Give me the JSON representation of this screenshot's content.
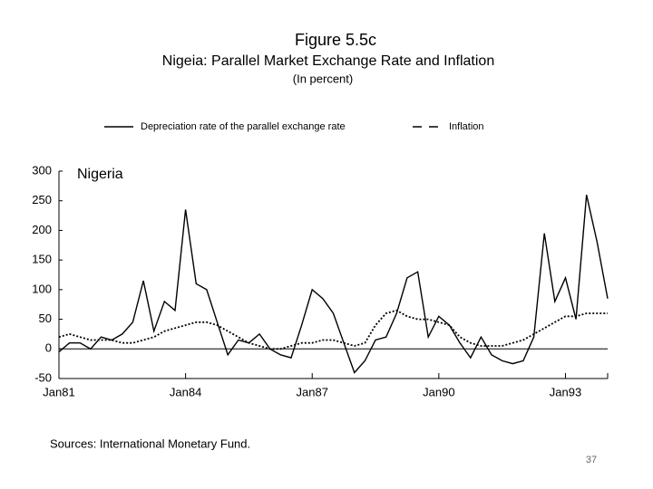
{
  "chart_data": {
    "type": "line",
    "title": "Figure 5.5c",
    "subtitle": "Nigeia: Parallel Market Exchange Rate and Inflation",
    "unit_note": "(In percent)",
    "annotation": "Nigeria",
    "source": "Sources: International Monetary Fund.",
    "page_number": "37",
    "categories": [
      "Jan81",
      null,
      null,
      null,
      null,
      null,
      null,
      null,
      null,
      null,
      null,
      null,
      "Jan84",
      null,
      null,
      null,
      null,
      null,
      null,
      null,
      null,
      null,
      null,
      null,
      "Jan87",
      null,
      null,
      null,
      null,
      null,
      null,
      null,
      null,
      null,
      null,
      null,
      "Jan90",
      null,
      null,
      null,
      null,
      null,
      null,
      null,
      null,
      null,
      null,
      null,
      "Jan93",
      null,
      null,
      null,
      null
    ],
    "series": [
      {
        "name": "Depreciation rate of the parallel exchange rate",
        "color": "#000000",
        "style": "solid",
        "values": [
          -5,
          10,
          10,
          0,
          20,
          15,
          25,
          45,
          115,
          30,
          80,
          65,
          235,
          110,
          100,
          45,
          -10,
          15,
          10,
          25,
          0,
          -10,
          -15,
          40,
          100,
          85,
          60,
          10,
          -40,
          -20,
          15,
          20,
          60,
          120,
          130,
          20,
          55,
          40,
          10,
          -15,
          20,
          -10,
          -20,
          -25,
          -20,
          20,
          195,
          80,
          120,
          50,
          260,
          180,
          85
        ]
      },
      {
        "name": "Inflation",
        "color": "#000000",
        "style": "dashed",
        "values": [
          20,
          25,
          20,
          15,
          15,
          15,
          10,
          10,
          15,
          20,
          30,
          35,
          40,
          45,
          45,
          40,
          30,
          20,
          10,
          5,
          0,
          0,
          5,
          10,
          10,
          15,
          15,
          10,
          5,
          10,
          40,
          60,
          65,
          55,
          50,
          50,
          45,
          40,
          20,
          10,
          5,
          5,
          5,
          10,
          15,
          25,
          35,
          45,
          55,
          55,
          60,
          60,
          60
        ]
      }
    ],
    "ylim": [
      -50,
      300
    ],
    "yticks": [
      300,
      250,
      200,
      150,
      100,
      50,
      0,
      -50
    ],
    "grid": false,
    "legend": "top"
  }
}
